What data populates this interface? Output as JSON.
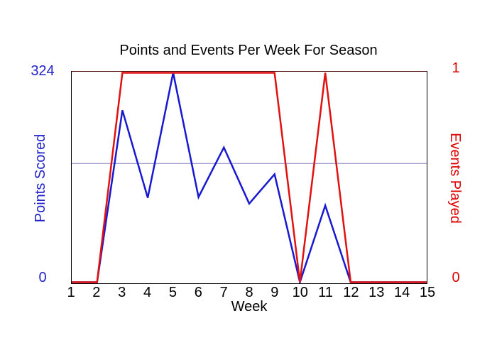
{
  "chart_data": {
    "type": "line",
    "title": "Points and Events Per Week For Season",
    "xlabel": "Week",
    "categories": [
      "1",
      "2",
      "3",
      "4",
      "5",
      "6",
      "7",
      "8",
      "9",
      "10",
      "11",
      "12",
      "13",
      "14",
      "15"
    ],
    "series": [
      {
        "name": "Points Scored",
        "axis": "left",
        "color": "#1818d0",
        "values": [
          0,
          0,
          265,
          131,
          324,
          132,
          208,
          122,
          167,
          0,
          119,
          0,
          0,
          0,
          0
        ]
      },
      {
        "name": "Events Played",
        "axis": "right",
        "color": "#e01111",
        "values": [
          0,
          0,
          1,
          1,
          1,
          1,
          1,
          1,
          1,
          0,
          1,
          0,
          0,
          0,
          0
        ]
      }
    ],
    "axes": {
      "left": {
        "title": "Points Scored",
        "min": 0,
        "max": 324,
        "min_label": "0",
        "max_label": "324",
        "color": "#2222cc"
      },
      "right": {
        "title": "Events Played",
        "min": 0,
        "max": 1,
        "min_label": "0",
        "max_label": "1",
        "color": "#dd0000"
      }
    },
    "reference_line": {
      "axis": "left",
      "value": 183.5,
      "color": "#8080c0"
    },
    "grid": false,
    "legend": "none",
    "xlim": [
      1,
      15
    ]
  }
}
